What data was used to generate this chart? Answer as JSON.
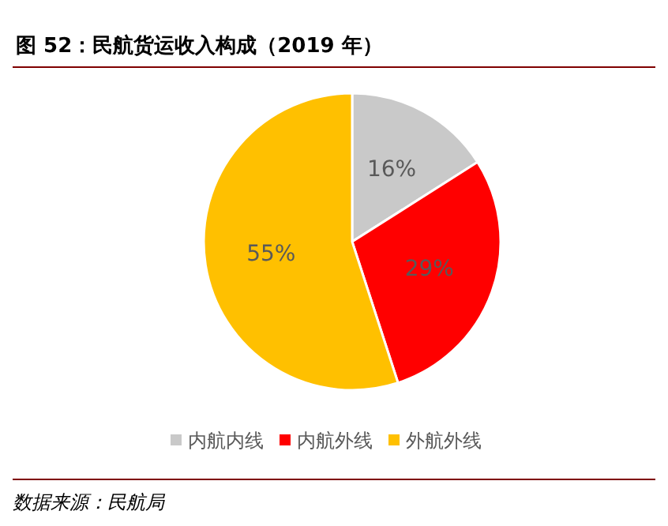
{
  "chart_data": {
    "type": "pie",
    "title": "图 52：民航货运收入构成（2019 年）",
    "categories": [
      "内航内线",
      "内航外线",
      "外航外线"
    ],
    "values": [
      16,
      29,
      55
    ],
    "colors": [
      "#c9c9c9",
      "#ff0000",
      "#ffc000"
    ],
    "value_labels": [
      "16%",
      "29%",
      "55%"
    ],
    "legend": "bottom",
    "annotations": [
      "数据来源：民航局"
    ]
  }
}
